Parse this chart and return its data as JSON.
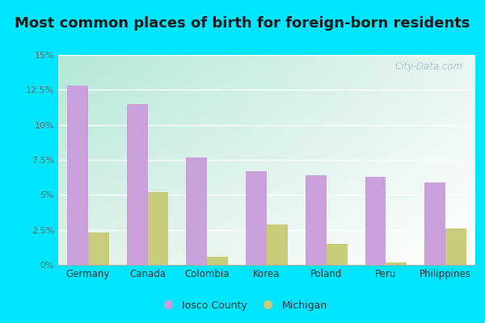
{
  "title": "Most common places of birth for foreign-born residents",
  "categories": [
    "Germany",
    "Canada",
    "Colombia",
    "Korea",
    "Poland",
    "Peru",
    "Philippines"
  ],
  "iosco_values": [
    12.8,
    11.5,
    7.7,
    6.7,
    6.4,
    6.3,
    5.9
  ],
  "michigan_values": [
    2.3,
    5.2,
    0.6,
    2.9,
    1.5,
    0.15,
    2.6
  ],
  "iosco_color": "#c9a0dc",
  "michigan_color": "#c8cc7a",
  "bar_width": 0.35,
  "ylim": [
    0,
    15
  ],
  "yticks": [
    0,
    2.5,
    5.0,
    7.5,
    10.0,
    12.5,
    15.0
  ],
  "ytick_labels": [
    "0%",
    "2.5%",
    "5%",
    "7.5%",
    "10%",
    "12.5%",
    "15%"
  ],
  "legend_labels": [
    "Iosco County",
    "Michigan"
  ],
  "bg_outer": "#00e5ff",
  "title_fontsize": 13,
  "watermark": "City-Data.com"
}
